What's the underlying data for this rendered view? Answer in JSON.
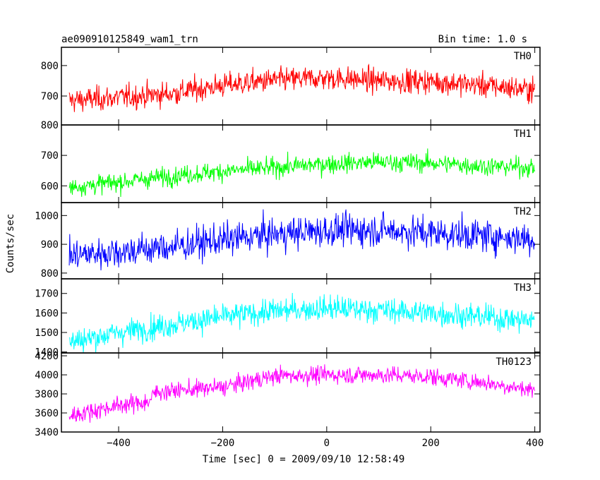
{
  "chart_data": {
    "type": "line",
    "title_left": "ae090910125849_wam1_trn",
    "title_right": "Bin time: 1.0 s",
    "xlabel": "Time [sec] 0 = 2009/09/10 12:58:49",
    "ylabel": "Counts/sec",
    "xlim": [
      -510,
      410
    ],
    "x_ticks": [
      -400,
      -200,
      0,
      200,
      400
    ],
    "x_tick_labels": [
      "−400",
      "−200",
      "0",
      "200",
      "400"
    ],
    "x_range_data": [
      -495,
      400
    ],
    "panels": [
      {
        "name": "TH0",
        "color": "#ff0000",
        "ylim": [
          605,
          860
        ],
        "yticks": [
          700,
          800
        ],
        "ytick_labels": [
          "700",
          "800"
        ],
        "trend_x": [
          -495,
          -400,
          -300,
          -200,
          -100,
          0,
          100,
          200,
          300,
          400
        ],
        "trend_y": [
          685,
          695,
          708,
          735,
          752,
          760,
          750,
          748,
          735,
          720
        ],
        "noise": 28
      },
      {
        "name": "TH1",
        "color": "#00ff00",
        "ylim": [
          545,
          800
        ],
        "yticks": [
          600,
          700,
          800
        ],
        "ytick_labels": [
          "600",
          "700",
          "800"
        ],
        "trend_x": [
          -495,
          -400,
          -300,
          -200,
          -100,
          0,
          100,
          200,
          300,
          400
        ],
        "trend_y": [
          595,
          612,
          632,
          648,
          660,
          672,
          678,
          675,
          665,
          660
        ],
        "noise": 22
      },
      {
        "name": "TH2",
        "color": "#0000ff",
        "ylim": [
          780,
          1045
        ],
        "yticks": [
          800,
          900,
          1000
        ],
        "ytick_labels": [
          "800",
          "900",
          "1000"
        ],
        "trend_x": [
          -495,
          -400,
          -300,
          -200,
          -100,
          0,
          100,
          200,
          300,
          400
        ],
        "trend_y": [
          860,
          875,
          890,
          915,
          935,
          948,
          950,
          940,
          930,
          920
        ],
        "noise": 40
      },
      {
        "name": "TH3",
        "color": "#00ffff",
        "ylim": [
          1395,
          1775
        ],
        "yticks": [
          1400,
          1500,
          1600,
          1700
        ],
        "ytick_labels": [
          "1400",
          "1500",
          "1600",
          "1700"
        ],
        "trend_x": [
          -495,
          -400,
          -300,
          -200,
          -100,
          0,
          100,
          200,
          300,
          400
        ],
        "trend_y": [
          1450,
          1500,
          1540,
          1580,
          1610,
          1625,
          1615,
          1600,
          1580,
          1560
        ],
        "noise": 45
      },
      {
        "name": "TH0123",
        "color": "#ff00ff",
        "ylim": [
          3400,
          4230
        ],
        "yticks": [
          3400,
          3600,
          3800,
          4000,
          4200
        ],
        "ytick_labels": [
          "3400",
          "3600",
          "3800",
          "4000",
          "4200"
        ],
        "trend_x": [
          -495,
          -400,
          -340,
          -330,
          -200,
          -100,
          0,
          100,
          200,
          300,
          400
        ],
        "trend_y": [
          3570,
          3680,
          3720,
          3820,
          3870,
          3990,
          4000,
          4000,
          3980,
          3920,
          3840
        ],
        "noise": 65
      }
    ],
    "grid": false
  }
}
